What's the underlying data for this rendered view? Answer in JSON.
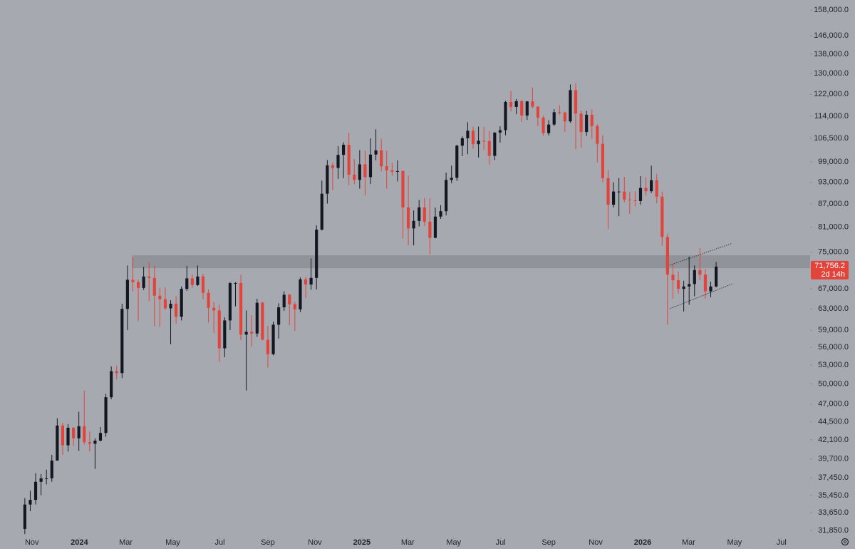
{
  "chart_data": {
    "type": "candlestick",
    "log_scale": true,
    "up_color": "#131722",
    "down_color": "#e2433b",
    "xlim": [
      -4.6,
      145.4
    ],
    "ylim": [
      31300,
      163000
    ],
    "yticks": [
      {
        "value": 158000,
        "label": "158,000.0"
      },
      {
        "value": 146000,
        "label": "146,000.0"
      },
      {
        "value": 138000,
        "label": "138,000.0"
      },
      {
        "value": 130000,
        "label": "130,000.0"
      },
      {
        "value": 122000,
        "label": "122,000.0"
      },
      {
        "value": 114000,
        "label": "114,000.0"
      },
      {
        "value": 106500,
        "label": "106,500.0"
      },
      {
        "value": 99000,
        "label": "99,000.0"
      },
      {
        "value": 93000,
        "label": "93,000.0"
      },
      {
        "value": 87000,
        "label": "87,000.0"
      },
      {
        "value": 81000,
        "label": "81,000.0"
      },
      {
        "value": 75000,
        "label": "75,000.0"
      },
      {
        "value": 67000,
        "label": "67,000.0"
      },
      {
        "value": 63000,
        "label": "63,000.0"
      },
      {
        "value": 59000,
        "label": "59,000.0"
      },
      {
        "value": 56000,
        "label": "56,000.0"
      },
      {
        "value": 53000,
        "label": "53,000.0"
      },
      {
        "value": 50000,
        "label": "50,000.0"
      },
      {
        "value": 47000,
        "label": "47,000.0"
      },
      {
        "value": 44500,
        "label": "44,500.0"
      },
      {
        "value": 42100,
        "label": "42,100.0"
      },
      {
        "value": 39700,
        "label": "39,700.0"
      },
      {
        "value": 37450,
        "label": "37,450.0"
      },
      {
        "value": 35450,
        "label": "35,450.0"
      },
      {
        "value": 33650,
        "label": "33,650.0"
      },
      {
        "value": 31850,
        "label": "31,850.0"
      }
    ],
    "xticks": [
      {
        "value": 1.3,
        "label": "Nov"
      },
      {
        "value": 10.1,
        "label": "2024"
      },
      {
        "value": 18.7,
        "label": "Mar"
      },
      {
        "value": 27.4,
        "label": "May"
      },
      {
        "value": 36.1,
        "label": "Jul"
      },
      {
        "value": 45.0,
        "label": "Sep"
      },
      {
        "value": 53.7,
        "label": "Nov"
      },
      {
        "value": 62.4,
        "label": "2025"
      },
      {
        "value": 70.9,
        "label": "Mar"
      },
      {
        "value": 79.4,
        "label": "May"
      },
      {
        "value": 88.1,
        "label": "Jul"
      },
      {
        "value": 97.0,
        "label": "Sep"
      },
      {
        "value": 105.7,
        "label": "Nov"
      },
      {
        "value": 114.4,
        "label": "2026"
      },
      {
        "value": 122.9,
        "label": "Mar"
      },
      {
        "value": 131.4,
        "label": "May"
      },
      {
        "value": 140.1,
        "label": "Jul"
      }
    ],
    "open": [
      32000,
      34500,
      35000,
      37000,
      37400,
      37400,
      39500,
      44000,
      41400,
      43700,
      42300,
      43900,
      41800,
      41600,
      42000,
      43000,
      48000,
      52000,
      51700,
      63000,
      68900,
      68400,
      67200,
      69600,
      69300,
      65600,
      64900,
      63100,
      64000,
      61500,
      67000,
      69200,
      67800,
      69600,
      66200,
      63200,
      62700,
      55800,
      60800,
      68200,
      68200,
      58200,
      58700,
      58400,
      64200,
      57300,
      54800,
      60000,
      63300,
      65800,
      63900,
      62900,
      69000,
      67900,
      69300,
      80400,
      89800,
      98000,
      97200,
      101200,
      104400,
      95200,
      93700,
      98300,
      94500,
      101300,
      102600,
      97700,
      96500,
      96100,
      96300,
      86100,
      80700,
      82600,
      86100,
      82400,
      78400,
      83700,
      85100,
      93700,
      94300,
      104100,
      106500,
      109000,
      104600,
      105700,
      105600,
      100900,
      108400,
      109200,
      119100,
      117300,
      119400,
      114200,
      119300,
      117400,
      113500,
      108200,
      111100,
      115400,
      115300,
      112200,
      123500,
      114900,
      108600,
      114500,
      110600,
      104700,
      94200,
      86800,
      90400,
      90400,
      88200,
      88000,
      87800,
      91400,
      90500,
      93600,
      89000,
      78600,
      70000,
      68800,
      67000,
      67500,
      68000,
      71000,
      70000,
      66500,
      67500
    ],
    "high": [
      35200,
      36000,
      38000,
      37900,
      38400,
      40200,
      45000,
      44400,
      44200,
      43800,
      45900,
      49000,
      43200,
      42300,
      43800,
      48500,
      52800,
      52900,
      64000,
      72000,
      73800,
      68900,
      71700,
      72700,
      72000,
      67200,
      67300,
      64700,
      65500,
      67500,
      71900,
      70100,
      72000,
      70200,
      66900,
      64400,
      63800,
      61400,
      68400,
      68400,
      70000,
      62700,
      61800,
      65000,
      64400,
      59800,
      60600,
      64100,
      66500,
      66000,
      64400,
      69400,
      69500,
      73600,
      81500,
      93500,
      99600,
      98800,
      104000,
      105200,
      108300,
      99900,
      102700,
      102500,
      106500,
      109500,
      106400,
      102500,
      98800,
      99500,
      96500,
      95000,
      85300,
      88100,
      88600,
      88500,
      86100,
      86700,
      95800,
      97900,
      104400,
      107100,
      111900,
      110400,
      110400,
      110300,
      108900,
      108500,
      110500,
      119500,
      123200,
      120200,
      119800,
      119400,
      124500,
      117600,
      114200,
      112600,
      116500,
      117900,
      115600,
      125700,
      126200,
      116000,
      115900,
      116400,
      111200,
      107500,
      96600,
      93000,
      94200,
      94600,
      90300,
      90500,
      94800,
      94500,
      97900,
      95500,
      90400,
      79400,
      72300,
      70700,
      68700,
      74000,
      72000,
      76000,
      71200,
      68500,
      72800
    ],
    "low": [
      31500,
      33800,
      34500,
      35500,
      36700,
      37000,
      39500,
      40200,
      40600,
      41300,
      40700,
      41500,
      40600,
      38500,
      41900,
      42500,
      47700,
      50700,
      50900,
      59000,
      66500,
      60700,
      66800,
      64500,
      59700,
      59600,
      62800,
      56500,
      60200,
      60800,
      66600,
      67200,
      67600,
      64900,
      60400,
      58500,
      53500,
      54300,
      59000,
      63500,
      57200,
      49000,
      56100,
      57800,
      57200,
      52600,
      54600,
      57500,
      62600,
      59900,
      58900,
      62400,
      65100,
      66800,
      66900,
      80200,
      87100,
      90800,
      94000,
      94200,
      92200,
      92500,
      91200,
      89300,
      92500,
      99500,
      96200,
      91200,
      94900,
      93300,
      78200,
      76600,
      76600,
      81200,
      81300,
      74500,
      78300,
      83100,
      84000,
      92800,
      93400,
      100800,
      101400,
      103100,
      100400,
      102800,
      98200,
      99600,
      105100,
      107500,
      115700,
      114700,
      112000,
      112700,
      116800,
      110600,
      107300,
      107400,
      110600,
      114500,
      108600,
      111700,
      103000,
      103500,
      107300,
      106300,
      98900,
      93000,
      80600,
      86100,
      83800,
      87500,
      84400,
      86400,
      86800,
      89300,
      90000,
      87200,
      76500,
      60000,
      65000,
      66000,
      62500,
      63800,
      65500,
      68800,
      65000,
      65300,
      67300
    ],
    "close": [
      34500,
      35000,
      37000,
      37400,
      37400,
      39500,
      44000,
      41400,
      43700,
      42300,
      43900,
      41800,
      41600,
      42000,
      43000,
      48000,
      52000,
      51700,
      63000,
      68900,
      68400,
      67200,
      69600,
      69300,
      65600,
      64900,
      63100,
      64000,
      61500,
      67000,
      69200,
      67800,
      69600,
      66200,
      63200,
      62700,
      55800,
      60800,
      68200,
      68200,
      58200,
      58700,
      58400,
      64200,
      57300,
      54800,
      60000,
      63300,
      65800,
      63900,
      62900,
      69000,
      67900,
      69300,
      80400,
      89800,
      98000,
      97200,
      101200,
      104400,
      95200,
      93700,
      98300,
      94500,
      101300,
      102600,
      97700,
      96500,
      96100,
      96300,
      86100,
      80700,
      82600,
      86100,
      82400,
      78400,
      83700,
      85100,
      93700,
      94300,
      104100,
      106500,
      109000,
      104600,
      105700,
      105600,
      100900,
      108400,
      109200,
      119100,
      117300,
      119400,
      114200,
      119300,
      117400,
      113500,
      108200,
      111100,
      115400,
      115300,
      112200,
      123500,
      114900,
      108600,
      114500,
      110600,
      104700,
      94200,
      86800,
      90400,
      90400,
      88200,
      88000,
      87800,
      91400,
      90500,
      93600,
      89000,
      78600,
      70000,
      68800,
      67000,
      67500,
      68000,
      71000,
      70000,
      66500,
      67500,
      71756.2
    ],
    "zones": [
      {
        "x_start": 19.8,
        "y": [
          71400,
          74300
        ],
        "color": "#8d8f97"
      }
    ],
    "trendlines": [
      {
        "x": [
          119.4,
          131.0
        ],
        "y": [
          72060,
          77100
        ]
      },
      {
        "x": [
          119.4,
          131.0
        ],
        "y": [
          63030,
          68050
        ]
      }
    ],
    "last_price": {
      "value": 71756.2,
      "label": "71,756.2"
    },
    "countdown": "2d 14h"
  }
}
